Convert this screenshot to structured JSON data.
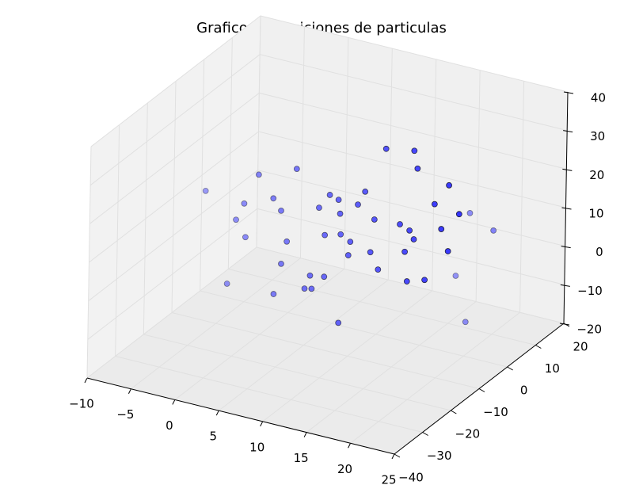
{
  "chart_data": {
    "type": "scatter3d",
    "title": "Grafico de posiciones de particulas",
    "color": "#0000ff",
    "edgecolor": "#000000",
    "grid": true,
    "x": [
      14,
      17.2,
      17.6,
      3.9,
      -0.4,
      -6.4,
      21.2,
      20,
      17,
      8.9,
      1.5,
      -3.8,
      15.8,
      17.3,
      21.2,
      1.3,
      2.2,
      6.5,
      10.9,
      12.8,
      16.8,
      20.4,
      19.6,
      7.2,
      9.9,
      12.4,
      16.3,
      5.6,
      7.2,
      2.3,
      18.6,
      16.6,
      13.3,
      -1.8,
      -2.9,
      -2,
      5,
      5.8,
      11.7,
      22.4,
      15.7,
      8.9,
      2.9,
      10.1,
      17.3,
      7.7,
      8.7,
      9
    ],
    "y": [
      -10,
      -10,
      -10,
      -10,
      -10,
      -10,
      -10,
      10,
      10,
      -10,
      -10,
      -10,
      10,
      10,
      -10,
      -10,
      -10,
      -10,
      -10,
      -10,
      -10,
      -10,
      -10,
      -10,
      -10,
      -10,
      -10,
      -10,
      -10,
      -10,
      -10,
      -10,
      -10,
      -10,
      -10,
      -10,
      -10,
      -10,
      -10,
      -10,
      -10,
      -10,
      -10,
      -10,
      -10,
      -10,
      -10,
      -10
    ],
    "z": [
      36,
      37.3,
      32.9,
      25.1,
      21.2,
      13.6,
      30.6,
      6.9,
      -18.5,
      -12,
      -8.7,
      -9,
      -7.2,
      9.9,
      13.5,
      16,
      13.3,
      16.5,
      19.8,
      17,
      16.4,
      18.8,
      24.8,
      9.8,
      6.1,
      8.3,
      10.6,
      -1.6,
      -1,
      -0.4,
      4.6,
      3.1,
      4.3,
      4.2,
      8.1,
      12.8,
      -5.3,
      -4.9,
      23.6,
      23.8,
      17.4,
      16.3,
      5.7,
      9.7,
      14.4,
      20.5,
      19.8,
      11
    ],
    "xlim": [
      -10,
      25
    ],
    "ylim": [
      -40,
      20
    ],
    "zlim": [
      -20,
      40
    ],
    "xticks": [
      {
        "value": -10,
        "label": "−10"
      },
      {
        "value": -5,
        "label": "−5"
      },
      0,
      5,
      10,
      15,
      20,
      25
    ],
    "yticks": [
      {
        "value": -40,
        "label": "−40"
      },
      {
        "value": -30,
        "label": "−30"
      },
      {
        "value": -20,
        "label": "−20"
      },
      {
        "value": -10,
        "label": "−10"
      },
      0,
      10,
      20
    ],
    "zticks": [
      {
        "value": -20,
        "label": "−20"
      },
      {
        "value": -10,
        "label": "−10"
      },
      0,
      10,
      20,
      30,
      40
    ]
  }
}
